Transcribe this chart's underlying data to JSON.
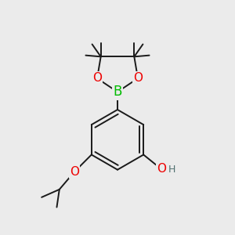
{
  "background_color": "#ebebeb",
  "bond_color": "#1a1a1a",
  "bond_width": 1.4,
  "atom_colors": {
    "B": "#00bb00",
    "O": "#ee0000",
    "H": "#507070",
    "C": "#1a1a1a"
  },
  "figsize": [
    3.0,
    3.0
  ],
  "dpi": 100,
  "xlim": [
    0.08,
    0.92
  ],
  "ylim": [
    0.05,
    0.95
  ]
}
